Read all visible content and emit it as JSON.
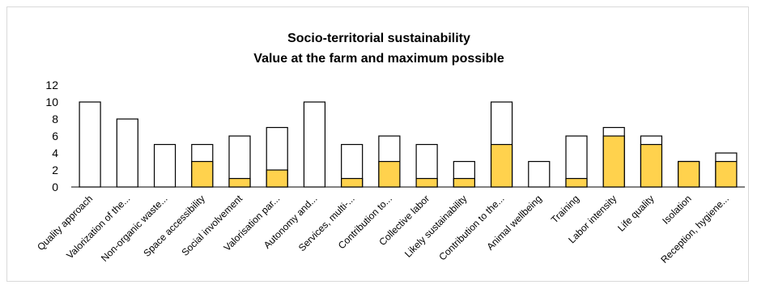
{
  "chart_data": {
    "type": "bar",
    "title_lines": [
      "Socio-territorial sustainability",
      "Value at the farm and maximum possible"
    ],
    "categories": [
      "Quality approach",
      "Valorization of the...",
      "Non-organic waste...",
      "Space accessibility",
      "Social involvement",
      "Valorisation par...",
      "Autonomy and...",
      "Services, multi-...",
      "Contribution to...",
      "Collective labor",
      "Likely sustainability",
      "Contribution to the...",
      "Animal wellbeing",
      "Training",
      "Labor intensity",
      "Life quality",
      "Isolation",
      "Reception, hygiene..."
    ],
    "series": [
      {
        "role": "farm",
        "values": [
          0,
          0,
          0,
          3,
          1,
          2,
          0,
          1,
          3,
          1,
          1,
          5,
          0,
          1,
          6,
          5,
          3,
          3
        ]
      },
      {
        "role": "maximum",
        "values": [
          10,
          8,
          5,
          5,
          6,
          7,
          10,
          5,
          6,
          5,
          3,
          10,
          3,
          6,
          7,
          6,
          3,
          4
        ]
      }
    ],
    "colors": {
      "farm": "#ffd24d",
      "maximum": "#ffffff",
      "outline": "#000000"
    },
    "yticks": [
      0,
      2,
      4,
      6,
      8,
      10,
      12
    ],
    "ylim": [
      0,
      12
    ],
    "grid": false,
    "legend": "none"
  }
}
